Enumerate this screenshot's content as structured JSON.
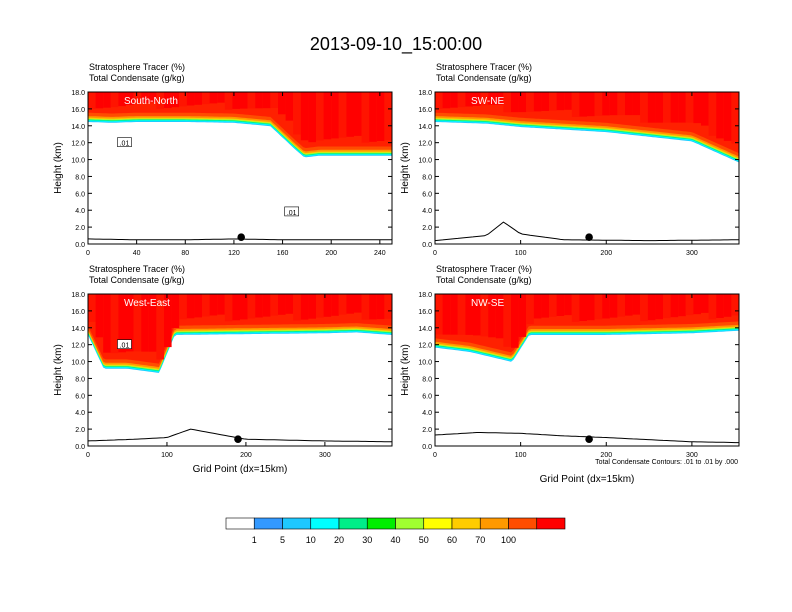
{
  "page_title": "2013-09-10_15:00:00",
  "panel_header_line1": "Stratosphere Tracer   (%)",
  "panel_header_line2": "Total Condensate   (g/kg)",
  "y_axis_label": "Height (km)",
  "x_axis_label": "Grid Point (dx=15km)",
  "contour_note": "Total Condensate Contours: .01 to .01 by .000",
  "chart_data": [
    {
      "type": "heatmap",
      "title": "South-North",
      "xlim": [
        0,
        250
      ],
      "ylim": [
        0,
        18
      ],
      "xticks": [
        0,
        40,
        80,
        120,
        160,
        200,
        240
      ],
      "yticks": [
        0.0,
        2.0,
        4.0,
        6.0,
        8.0,
        10.0,
        12.0,
        14.0,
        16.0,
        18.0
      ],
      "contour_labels": [
        ".01",
        ".01"
      ],
      "tropopause_km": {
        "x": [
          0,
          20,
          40,
          80,
          120,
          150,
          170,
          178,
          190,
          250
        ],
        "y": [
          14.8,
          14.7,
          14.8,
          14.8,
          14.7,
          14.3,
          11.6,
          10.6,
          10.8,
          10.8
        ]
      },
      "terrain_km": {
        "x": [
          0,
          40,
          80,
          120,
          160,
          200,
          250
        ],
        "y": [
          0.6,
          0.5,
          0.5,
          0.6,
          0.5,
          0.5,
          0.5
        ]
      },
      "marker_x": 126
    },
    {
      "type": "heatmap",
      "title": "SW-NE",
      "xlim": [
        0,
        355
      ],
      "ylim": [
        0,
        18
      ],
      "xticks": [
        0,
        100,
        200,
        300
      ],
      "yticks": [
        0.0,
        2.0,
        4.0,
        6.0,
        8.0,
        10.0,
        12.0,
        14.0,
        16.0,
        18.0
      ],
      "contour_labels": [],
      "tropopause_km": {
        "x": [
          0,
          60,
          100,
          200,
          300,
          355
        ],
        "y": [
          14.8,
          14.6,
          14.2,
          13.6,
          12.5,
          10.0
        ]
      },
      "terrain_km": {
        "x": [
          0,
          60,
          80,
          100,
          150,
          250,
          355
        ],
        "y": [
          0.4,
          1.0,
          2.6,
          1.2,
          0.5,
          0.4,
          0.5
        ]
      },
      "marker_x": 180
    },
    {
      "type": "heatmap",
      "title": "West-East",
      "xlim": [
        0,
        385
      ],
      "ylim": [
        0,
        18
      ],
      "xticks": [
        0,
        100,
        200,
        300
      ],
      "yticks": [
        0.0,
        2.0,
        4.0,
        6.0,
        8.0,
        10.0,
        12.0,
        14.0,
        16.0,
        18.0
      ],
      "contour_labels": [
        ".01"
      ],
      "tropopause_km": {
        "x": [
          0,
          20,
          50,
          90,
          110,
          200,
          300,
          340,
          385
        ],
        "y": [
          13.5,
          9.5,
          9.5,
          9.0,
          13.5,
          13.6,
          13.7,
          13.8,
          13.5
        ]
      },
      "terrain_km": {
        "x": [
          0,
          60,
          100,
          130,
          200,
          300,
          385
        ],
        "y": [
          0.6,
          0.8,
          1.0,
          2.0,
          0.8,
          0.6,
          0.5
        ]
      },
      "marker_x": 190
    },
    {
      "type": "heatmap",
      "title": "NW-SE",
      "xlim": [
        0,
        355
      ],
      "ylim": [
        0,
        18
      ],
      "xticks": [
        0,
        100,
        200,
        300
      ],
      "yticks": [
        0.0,
        2.0,
        4.0,
        6.0,
        8.0,
        10.0,
        12.0,
        14.0,
        16.0,
        18.0
      ],
      "contour_labels": [],
      "tropopause_km": {
        "x": [
          0,
          40,
          90,
          110,
          200,
          300,
          355
        ],
        "y": [
          12.0,
          11.5,
          10.3,
          13.5,
          13.5,
          13.7,
          14.0
        ]
      },
      "terrain_km": {
        "x": [
          0,
          50,
          100,
          150,
          200,
          300,
          355
        ],
        "y": [
          1.3,
          1.6,
          1.5,
          1.2,
          1.0,
          0.5,
          0.4
        ]
      },
      "marker_x": 180
    }
  ],
  "colorbar": {
    "labels": [
      "1",
      "5",
      "10",
      "20",
      "30",
      "40",
      "50",
      "60",
      "70",
      "100"
    ],
    "colors": [
      "#ffffff",
      "#3399ff",
      "#1ec8ff",
      "#00ffff",
      "#00ee88",
      "#00ee00",
      "#a0ff30",
      "#ffff00",
      "#ffcc00",
      "#ff9900",
      "#ff4d00",
      "#ff0000"
    ]
  }
}
